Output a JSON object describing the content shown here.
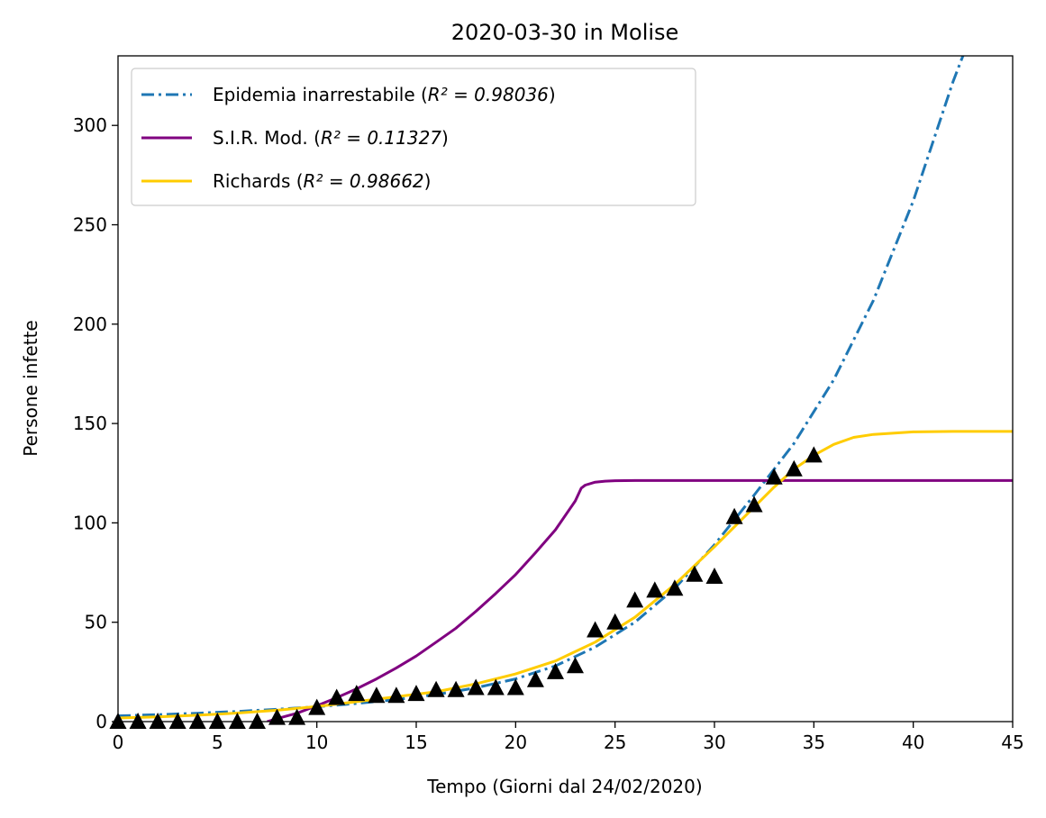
{
  "chart_data": {
    "type": "line",
    "title": "2020-03-30 in Molise",
    "xlabel": "Tempo (Giorni dal 24/02/2020)",
    "ylabel": "Persone infette",
    "xlim": [
      0,
      45
    ],
    "ylim": [
      0,
      335
    ],
    "xticks": [
      "0",
      "5",
      "10",
      "15",
      "20",
      "25",
      "30",
      "35",
      "40",
      "45"
    ],
    "yticks": [
      "0",
      "50",
      "100",
      "150",
      "200",
      "250",
      "300"
    ],
    "grid": false,
    "legend_position": "upper-left",
    "series": [
      {
        "name": "Epidemia inarrestabile",
        "r2_label": "R² = 0.98036",
        "style": "dashdot",
        "color": "#1f77b4",
        "x": [
          0,
          2,
          4,
          6,
          8,
          10,
          12,
          14,
          16,
          18,
          20,
          22,
          24,
          26,
          28,
          30,
          32,
          34,
          36,
          38,
          40,
          42,
          42.5
        ],
        "y": [
          2.9,
          3.5,
          4.2,
          5.1,
          6.2,
          7.5,
          9.1,
          11.1,
          13.6,
          17.0,
          21.5,
          28.0,
          37.5,
          50.0,
          67.0,
          89.0,
          114.0,
          140.0,
          172.0,
          212.0,
          262.0,
          322.0,
          335.0
        ]
      },
      {
        "name": "S.I.R. Mod.",
        "r2_label": "R² = 0.11327",
        "style": "solid",
        "color": "#800080",
        "x": [
          7.5,
          8,
          9,
          10,
          11,
          12,
          13,
          14,
          15,
          16,
          17,
          18,
          19,
          20,
          21,
          22,
          23,
          23.3,
          23.5,
          24,
          24.5,
          25,
          26,
          30,
          35,
          40,
          45
        ],
        "y": [
          0,
          1.5,
          4.2,
          8.0,
          12.0,
          16.5,
          21.5,
          27.0,
          33.0,
          40.0,
          47.0,
          55.5,
          64.5,
          74.0,
          85.0,
          96.5,
          111.0,
          117.5,
          119.0,
          120.5,
          121.0,
          121.2,
          121.3,
          121.3,
          121.3,
          121.3,
          121.3
        ]
      },
      {
        "name": "Richards",
        "r2_label": "R² = 0.98662",
        "style": "solid",
        "color": "#ffcc00",
        "x": [
          0,
          2,
          4,
          6,
          8,
          10,
          12,
          14,
          16,
          18,
          20,
          22,
          24,
          26,
          28,
          30,
          32,
          33,
          34,
          35,
          36,
          37,
          38,
          40,
          42,
          45
        ],
        "y": [
          1.8,
          2.4,
          3.2,
          4.3,
          5.7,
          7.6,
          10.0,
          12.5,
          15.0,
          19.0,
          24.0,
          30.5,
          40.0,
          52.5,
          69.0,
          88.0,
          108.0,
          118.0,
          127.0,
          134.0,
          139.5,
          143.0,
          144.5,
          145.8,
          146.0,
          146.0
        ]
      }
    ],
    "observed": {
      "marker": "triangle",
      "color": "#000000",
      "x": [
        0,
        1,
        2,
        3,
        4,
        5,
        6,
        7,
        8,
        9,
        10,
        11,
        12,
        13,
        14,
        15,
        16,
        17,
        18,
        19,
        20,
        21,
        22,
        23,
        24,
        25,
        26,
        27,
        28,
        29,
        30,
        31,
        32,
        33,
        34,
        35
      ],
      "y": [
        0,
        0,
        0,
        0,
        0,
        0,
        0,
        0,
        2,
        2,
        7,
        12,
        14,
        13,
        13,
        14,
        16,
        16,
        17,
        17,
        17,
        21,
        25,
        28,
        46,
        50,
        61,
        66,
        67,
        74,
        73,
        103,
        109,
        123,
        127,
        134
      ]
    }
  }
}
